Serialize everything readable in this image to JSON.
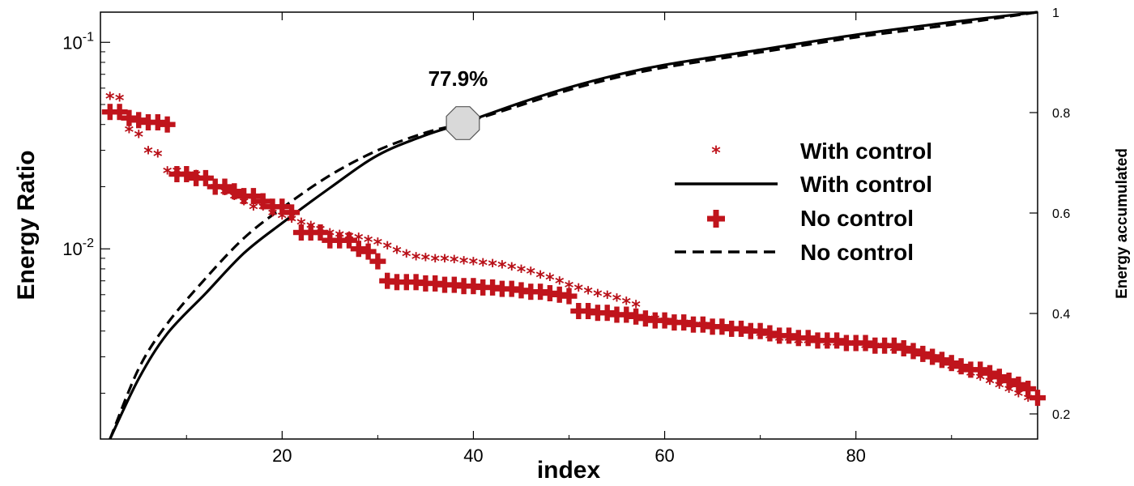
{
  "chart_data": {
    "type": "scatter",
    "xlabel": "index",
    "ylabel": "Energy Ratio",
    "y2label": "Energy accumulated",
    "xlim": [
      1,
      99
    ],
    "ylim_log": [
      0.0012,
      0.14
    ],
    "y2lim": [
      0.15,
      1.0
    ],
    "x_ticks": [
      20,
      40,
      60,
      80
    ],
    "x_tick_labels": [
      "20",
      "40",
      "60",
      "80"
    ],
    "y_ticks": [
      {
        "value": 0.1,
        "base": "10",
        "exp": "-1"
      },
      {
        "value": 0.01,
        "base": "10",
        "exp": "-2"
      }
    ],
    "y2_ticks": [
      0.2,
      0.4,
      0.6,
      0.8,
      1.0
    ],
    "y2_tick_labels": [
      "0.2",
      "0.4",
      "0.6",
      "0.8",
      "1"
    ],
    "series": [
      {
        "name": "With control",
        "kind": "energy_ratio",
        "marker": "star",
        "color": "#b80f17",
        "axis": "left",
        "x": [
          2,
          3,
          4,
          5,
          6,
          7,
          8,
          9,
          10,
          11,
          12,
          13,
          14,
          15,
          16,
          17,
          18,
          19,
          20,
          21,
          22,
          23,
          24,
          25,
          26,
          27,
          28,
          29,
          30,
          31,
          32,
          33,
          34,
          35,
          36,
          37,
          38,
          39,
          40,
          41,
          42,
          43,
          44,
          45,
          46,
          47,
          48,
          49,
          50,
          51,
          52,
          53,
          54,
          55,
          56,
          57,
          58,
          59,
          60,
          61,
          62,
          63,
          64,
          65,
          66,
          67,
          68,
          69,
          70,
          71,
          72,
          73,
          74,
          75,
          76,
          77,
          78,
          79,
          80,
          81,
          82,
          83,
          84,
          85,
          86,
          87,
          88,
          89,
          90,
          91,
          92,
          93,
          94,
          95,
          96,
          97,
          98
        ],
        "y": [
          0.055,
          0.054,
          0.038,
          0.036,
          0.03,
          0.029,
          0.024,
          0.024,
          0.023,
          0.023,
          0.022,
          0.02,
          0.019,
          0.018,
          0.017,
          0.016,
          0.016,
          0.015,
          0.0145,
          0.014,
          0.0135,
          0.013,
          0.0125,
          0.012,
          0.0118,
          0.0116,
          0.0114,
          0.0111,
          0.0108,
          0.0104,
          0.0099,
          0.0095,
          0.0092,
          0.0091,
          0.009,
          0.009,
          0.0089,
          0.0088,
          0.0087,
          0.0086,
          0.0085,
          0.0084,
          0.0082,
          0.008,
          0.0078,
          0.0075,
          0.0073,
          0.007,
          0.0067,
          0.0065,
          0.0063,
          0.0061,
          0.006,
          0.0058,
          0.0056,
          0.0054,
          0.0046,
          0.0046,
          0.0045,
          0.0044,
          0.0044,
          0.0043,
          0.0043,
          0.0042,
          0.0042,
          0.0041,
          0.0041,
          0.004,
          0.0039,
          0.0038,
          0.0037,
          0.0037,
          0.0036,
          0.0036,
          0.0036,
          0.0035,
          0.0035,
          0.0035,
          0.0035,
          0.0034,
          0.0034,
          0.0034,
          0.0033,
          0.0033,
          0.0032,
          0.0031,
          0.003,
          0.0029,
          0.0027,
          0.0026,
          0.0025,
          0.0024,
          0.0023,
          0.0022,
          0.0021,
          0.002,
          0.0019
        ]
      },
      {
        "name": "With control",
        "kind": "energy_accumulated",
        "line": "solid",
        "color": "#000000",
        "axis": "right",
        "x": [
          2,
          5,
          8,
          12,
          16,
          20,
          25,
          30,
          35,
          38.9,
          45,
          50,
          55,
          60,
          70,
          80,
          90,
          99
        ],
        "y": [
          0.15,
          0.27,
          0.36,
          0.44,
          0.52,
          0.58,
          0.65,
          0.715,
          0.755,
          0.779,
          0.82,
          0.85,
          0.875,
          0.895,
          0.925,
          0.955,
          0.98,
          1.0
        ]
      },
      {
        "name": "No control",
        "kind": "energy_ratio",
        "marker": "plus",
        "color": "#c0141c",
        "axis": "left",
        "x": [
          2,
          3,
          4,
          5,
          6,
          7,
          8,
          9,
          10,
          11,
          12,
          13,
          14,
          15,
          16,
          17,
          18,
          19,
          20,
          21,
          22,
          23,
          24,
          25,
          26,
          27,
          28,
          29,
          30,
          31,
          32,
          33,
          34,
          35,
          36,
          37,
          38,
          39,
          40,
          41,
          42,
          43,
          44,
          45,
          46,
          47,
          48,
          49,
          50,
          51,
          52,
          53,
          54,
          55,
          56,
          57,
          58,
          59,
          60,
          61,
          62,
          63,
          64,
          65,
          66,
          67,
          68,
          69,
          70,
          71,
          72,
          73,
          74,
          75,
          76,
          77,
          78,
          79,
          80,
          81,
          82,
          83,
          84,
          85,
          86,
          87,
          88,
          89,
          90,
          91,
          92,
          93,
          94,
          95,
          96,
          97,
          98,
          99
        ],
        "y": [
          0.046,
          0.046,
          0.043,
          0.042,
          0.041,
          0.041,
          0.04,
          0.023,
          0.023,
          0.022,
          0.022,
          0.02,
          0.02,
          0.019,
          0.018,
          0.018,
          0.017,
          0.016,
          0.016,
          0.015,
          0.012,
          0.012,
          0.012,
          0.011,
          0.011,
          0.011,
          0.01,
          0.0097,
          0.0087,
          0.007,
          0.0069,
          0.0069,
          0.0069,
          0.0068,
          0.0068,
          0.0067,
          0.0067,
          0.0066,
          0.0066,
          0.0065,
          0.0065,
          0.0064,
          0.0064,
          0.0063,
          0.0062,
          0.0062,
          0.0061,
          0.006,
          0.0059,
          0.005,
          0.005,
          0.0049,
          0.0049,
          0.0048,
          0.0048,
          0.0047,
          0.0046,
          0.0045,
          0.0045,
          0.0044,
          0.0044,
          0.0043,
          0.0043,
          0.0042,
          0.0042,
          0.0041,
          0.0041,
          0.004,
          0.004,
          0.0039,
          0.0038,
          0.0038,
          0.0037,
          0.0037,
          0.0036,
          0.0036,
          0.0036,
          0.0035,
          0.0035,
          0.0035,
          0.0034,
          0.0034,
          0.0034,
          0.0033,
          0.0032,
          0.0031,
          0.003,
          0.0029,
          0.0028,
          0.0027,
          0.0026,
          0.0026,
          0.0025,
          0.0024,
          0.0023,
          0.0022,
          0.0021,
          0.0019
        ]
      },
      {
        "name": "No control",
        "kind": "energy_accumulated",
        "line": "dashed",
        "color": "#000000",
        "axis": "right",
        "x": [
          2,
          5,
          8,
          12,
          16,
          20,
          25,
          30,
          35,
          38.9,
          45,
          50,
          55,
          60,
          70,
          80,
          90,
          99
        ],
        "y": [
          0.15,
          0.29,
          0.38,
          0.47,
          0.55,
          0.61,
          0.675,
          0.725,
          0.76,
          0.779,
          0.815,
          0.845,
          0.87,
          0.89,
          0.92,
          0.95,
          0.975,
          1.0
        ]
      }
    ],
    "annotation": {
      "text": "77.9%",
      "x": 38.9,
      "y2": 0.779,
      "marker": "octagon",
      "fill": "#d9d9d9"
    },
    "legend": {
      "placement": "right",
      "entries": [
        {
          "label": "With control",
          "symbol": "star",
          "color": "#c0141c"
        },
        {
          "label": "With control",
          "symbol": "solid-line",
          "color": "#000000"
        },
        {
          "label": "No control",
          "symbol": "plus",
          "color": "#c0141c"
        },
        {
          "label": "No control",
          "symbol": "dashed-line",
          "color": "#000000"
        }
      ]
    },
    "grid": false
  }
}
